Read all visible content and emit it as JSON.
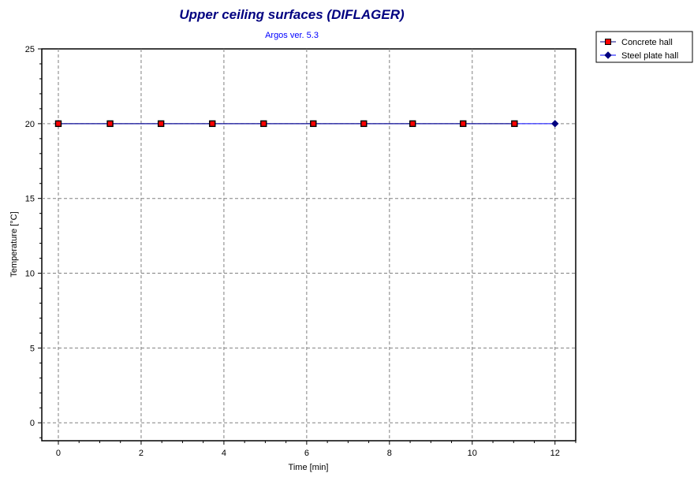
{
  "chart_data": {
    "type": "line",
    "title": "Upper ceiling surfaces   (DIFLAGER)",
    "subtitle": "Argos ver. 5.3",
    "xlabel": "Time [min]",
    "ylabel": "Temperature [°C]",
    "xlim": [
      -0.4,
      12.5
    ],
    "ylim": [
      -1.2,
      25
    ],
    "xticks": [
      0,
      2,
      4,
      6,
      8,
      10,
      12
    ],
    "yticks": [
      0,
      5,
      10,
      15,
      20,
      25
    ],
    "grid": true,
    "legend_position": "outside-top-right",
    "series": [
      {
        "name": "Concrete hall",
        "color": "#000080",
        "marker": "square",
        "marker_fill": "#ff0000",
        "x": [
          0,
          1.25,
          2.48,
          3.72,
          4.96,
          6.16,
          7.38,
          8.56,
          9.78,
          11.02
        ],
        "y": [
          20,
          20,
          20,
          20,
          20,
          20,
          20,
          20,
          20,
          20
        ]
      },
      {
        "name": "Steel plate hall",
        "color": "#0000ff",
        "marker": "diamond",
        "marker_fill": "#000080",
        "x": [
          0,
          12
        ],
        "y": [
          20,
          20
        ]
      }
    ]
  },
  "colors": {
    "title": "#000080",
    "subtitle": "#0000ff",
    "grid": "#808080"
  }
}
